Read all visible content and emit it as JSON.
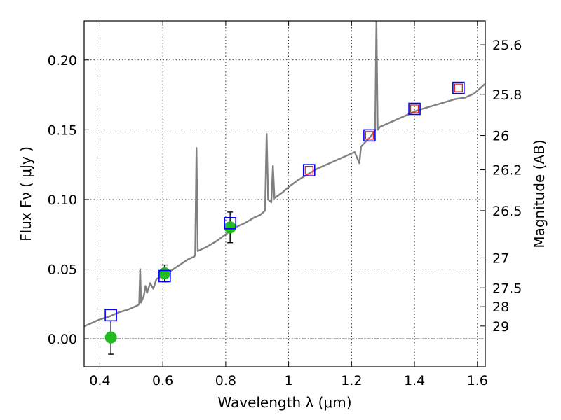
{
  "chart_data": {
    "type": "line",
    "xlabel": "Wavelength  λ (μm)",
    "ylabel": "Flux  Fν  ( μJy )",
    "y2label": "Magnitude (AB)",
    "xlim": [
      0.35,
      1.625
    ],
    "ylim": [
      -0.02,
      0.228
    ],
    "grid": true,
    "x_ticks": [
      {
        "value": 0.4,
        "label": "0.4"
      },
      {
        "value": 0.6,
        "label": "0.6"
      },
      {
        "value": 0.8,
        "label": "0.8"
      },
      {
        "value": 1.0,
        "label": "1"
      },
      {
        "value": 1.2,
        "label": "1.2"
      },
      {
        "value": 1.4,
        "label": "1.4"
      },
      {
        "value": 1.6,
        "label": "1.6"
      }
    ],
    "y_ticks": [
      {
        "value": 0.0,
        "label": "0.00"
      },
      {
        "value": 0.05,
        "label": "0.05"
      },
      {
        "value": 0.1,
        "label": "0.10"
      },
      {
        "value": 0.15,
        "label": "0.15"
      },
      {
        "value": 0.2,
        "label": "0.20"
      }
    ],
    "mag_ticks": [
      {
        "label": "25.6",
        "flux": 0.2109
      },
      {
        "label": "25.8",
        "flux": 0.1754
      },
      {
        "label": "26",
        "flux": 0.1459
      },
      {
        "label": "26.2",
        "flux": 0.1213
      },
      {
        "label": "26.5",
        "flux": 0.092
      },
      {
        "label": "27",
        "flux": 0.0581
      },
      {
        "label": "27.5",
        "flux": 0.0366
      },
      {
        "label": "28",
        "flux": 0.0231
      },
      {
        "label": "29",
        "flux": 0.0092
      }
    ],
    "zero_line": 0.0,
    "spectrum": {
      "color": "#808080",
      "points": [
        [
          0.35,
          0.009
        ],
        [
          0.37,
          0.011
        ],
        [
          0.4,
          0.014
        ],
        [
          0.43,
          0.016
        ],
        [
          0.46,
          0.019
        ],
        [
          0.49,
          0.021
        ],
        [
          0.52,
          0.024
        ],
        [
          0.525,
          0.025
        ],
        [
          0.528,
          0.05
        ],
        [
          0.531,
          0.026
        ],
        [
          0.54,
          0.031
        ],
        [
          0.545,
          0.038
        ],
        [
          0.55,
          0.033
        ],
        [
          0.56,
          0.04
        ],
        [
          0.57,
          0.036
        ],
        [
          0.58,
          0.043
        ],
        [
          0.6,
          0.045
        ],
        [
          0.62,
          0.048
        ],
        [
          0.64,
          0.051
        ],
        [
          0.66,
          0.054
        ],
        [
          0.68,
          0.057
        ],
        [
          0.7,
          0.059
        ],
        [
          0.703,
          0.06
        ],
        [
          0.707,
          0.137
        ],
        [
          0.711,
          0.063
        ],
        [
          0.74,
          0.066
        ],
        [
          0.77,
          0.07
        ],
        [
          0.8,
          0.075
        ],
        [
          0.83,
          0.08
        ],
        [
          0.86,
          0.083
        ],
        [
          0.89,
          0.087
        ],
        [
          0.91,
          0.089
        ],
        [
          0.925,
          0.092
        ],
        [
          0.93,
          0.147
        ],
        [
          0.935,
          0.1
        ],
        [
          0.945,
          0.098
        ],
        [
          0.95,
          0.124
        ],
        [
          0.955,
          0.101
        ],
        [
          0.98,
          0.105
        ],
        [
          1.0,
          0.109
        ],
        [
          1.03,
          0.114
        ],
        [
          1.06,
          0.118
        ],
        [
          1.09,
          0.122
        ],
        [
          1.12,
          0.125
        ],
        [
          1.15,
          0.128
        ],
        [
          1.18,
          0.131
        ],
        [
          1.21,
          0.134
        ],
        [
          1.225,
          0.126
        ],
        [
          1.23,
          0.138
        ],
        [
          1.26,
          0.145
        ],
        [
          1.27,
          0.148
        ],
        [
          1.275,
          0.15
        ],
        [
          1.279,
          0.228
        ],
        [
          1.283,
          0.15
        ],
        [
          1.29,
          0.152
        ],
        [
          1.32,
          0.155
        ],
        [
          1.35,
          0.158
        ],
        [
          1.38,
          0.161
        ],
        [
          1.41,
          0.164
        ],
        [
          1.44,
          0.166
        ],
        [
          1.47,
          0.168
        ],
        [
          1.5,
          0.17
        ],
        [
          1.53,
          0.172
        ],
        [
          1.56,
          0.173
        ],
        [
          1.59,
          0.176
        ],
        [
          1.625,
          0.183
        ]
      ]
    },
    "series": [
      {
        "marker": "circle",
        "color": "#22bb22",
        "points": [
          {
            "x": 0.435,
            "y": 0.001,
            "err": 0.012
          },
          {
            "x": 0.606,
            "y": 0.047,
            "err": 0.006
          },
          {
            "x": 0.814,
            "y": 0.08,
            "err": 0.011
          }
        ]
      },
      {
        "marker": "square-large",
        "color": "#0000ff",
        "points": [
          {
            "x": 0.435,
            "y": 0.017
          },
          {
            "x": 0.606,
            "y": 0.045
          },
          {
            "x": 0.814,
            "y": 0.083
          },
          {
            "x": 1.065,
            "y": 0.121
          },
          {
            "x": 1.257,
            "y": 0.146
          },
          {
            "x": 1.4,
            "y": 0.165
          },
          {
            "x": 1.54,
            "y": 0.18
          }
        ]
      },
      {
        "marker": "square-small",
        "color": "#dd2222",
        "points": [
          {
            "x": 1.065,
            "y": 0.121
          },
          {
            "x": 1.257,
            "y": 0.146
          },
          {
            "x": 1.4,
            "y": 0.165
          },
          {
            "x": 1.54,
            "y": 0.18
          }
        ]
      }
    ]
  }
}
